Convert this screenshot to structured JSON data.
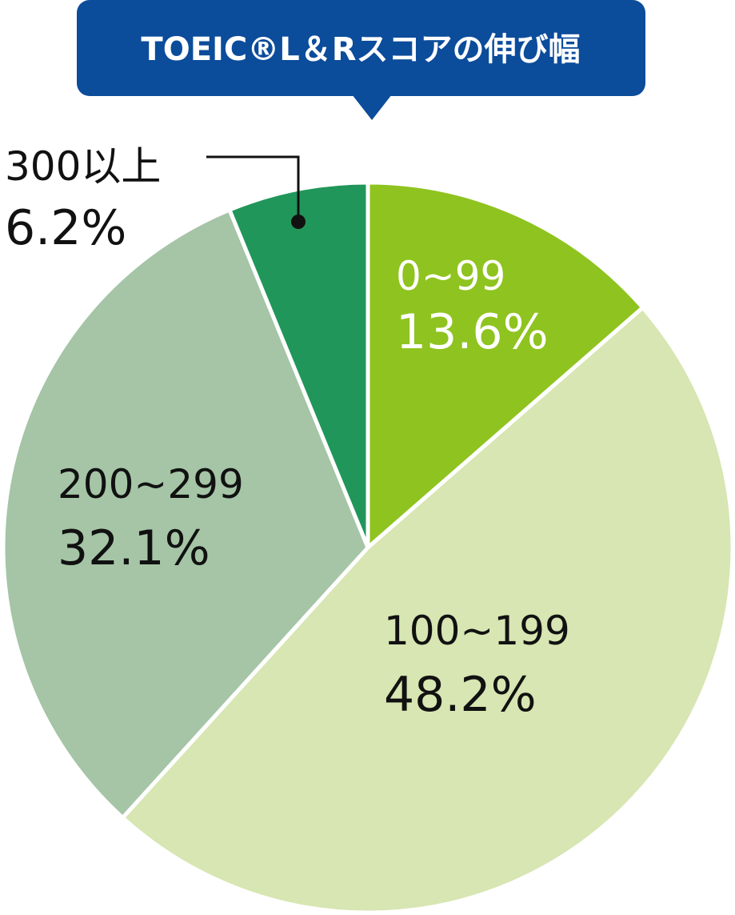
{
  "chart_data": {
    "type": "pie",
    "title": "TOEIC®L＆Rスコアの伸び幅",
    "categories": [
      "0~99",
      "100~199",
      "200~299",
      "300以上"
    ],
    "values": [
      13.6,
      48.2,
      32.1,
      6.2
    ],
    "value_labels": [
      "13.6%",
      "48.2%",
      "32.1%",
      "6.2%"
    ],
    "colors": [
      "#8fc31f",
      "#d7e6b2",
      "#a5c5a6",
      "#21965a"
    ],
    "start_angle": "12 o'clock",
    "direction": "clockwise",
    "legend": "none"
  },
  "title_box_color": "#0b4c9b"
}
